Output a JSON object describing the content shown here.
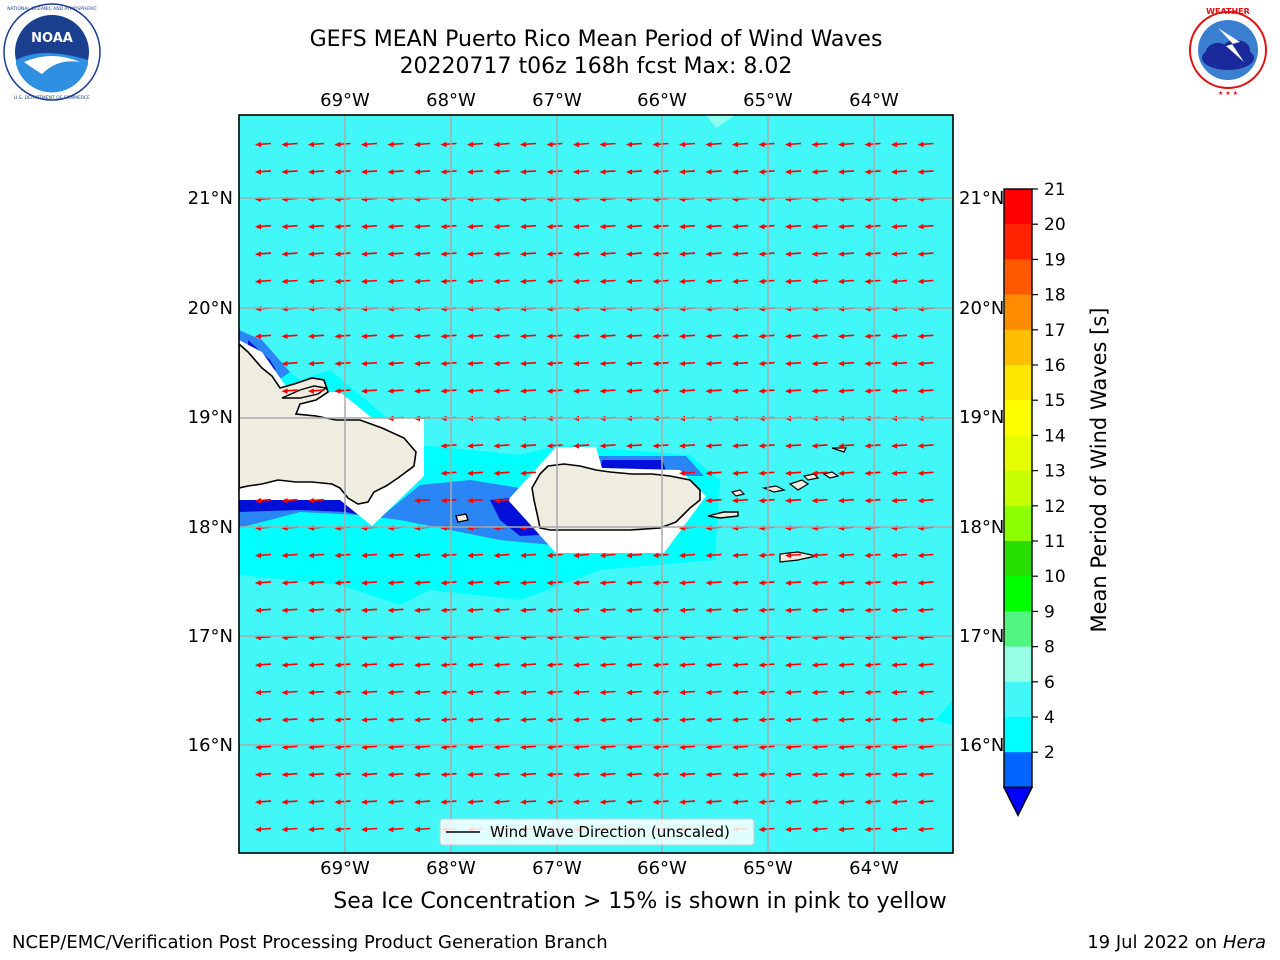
{
  "header": {
    "title_line1": "GEFS MEAN Puerto Rico Mean Period of Wind Waves",
    "title_line2": "20220717 t06z 168h fcst   Max: 8.02"
  },
  "logos": {
    "left": {
      "icon": "noaa-logo-icon",
      "text": "NOAA",
      "ring_text": "NATIONAL OCEANIC AND ATMOSPHERIC ADMINISTRATION · U.S. DEPARTMENT OF COMMERCE"
    },
    "right": {
      "icon": "nws-logo-icon",
      "ring_text": "NATIONAL WEATHER SERVICE"
    }
  },
  "map": {
    "lon_ticks": [
      "69°W",
      "68°W",
      "67°W",
      "66°W",
      "65°W",
      "64°W"
    ],
    "lat_ticks": [
      "21°N",
      "20°N",
      "19°N",
      "18°N",
      "17°N",
      "16°N"
    ],
    "legend_label": "Wind Wave Direction (unscaled)",
    "wind_wave_direction": "from east (westward arrows)",
    "field_colors": {
      "ocean": "#41f7f7",
      "ocean_light": "#00ffff",
      "mid": "#2a86f5",
      "deep": "#0010d8",
      "land": "#efede0",
      "arrow": "#ff0000"
    }
  },
  "colorbar": {
    "label": "Mean Period of Wind Waves [s]",
    "ticks": [
      "21",
      "20",
      "19",
      "18",
      "17",
      "16",
      "15",
      "14",
      "13",
      "12",
      "11",
      "10",
      "9",
      "8",
      "6",
      "4",
      "2"
    ],
    "colors": [
      "#ff0000",
      "#ff2300",
      "#ff5a00",
      "#ff8c00",
      "#ffbe00",
      "#ffe600",
      "#ffff00",
      "#e6ff00",
      "#c8ff00",
      "#8cff00",
      "#28e000",
      "#00ff00",
      "#50f580",
      "#96ffe6",
      "#41f7f7",
      "#00ffff",
      "#0064ff"
    ],
    "extend_color": "#0000ff"
  },
  "caption": "Sea Ice Concentration > 15% is shown in pink to yellow",
  "footer": {
    "left": "NCEP/EMC/Verification Post Processing Product Generation Branch",
    "right_date": "19 Jul 2022 on",
    "right_machine": "Hera"
  }
}
